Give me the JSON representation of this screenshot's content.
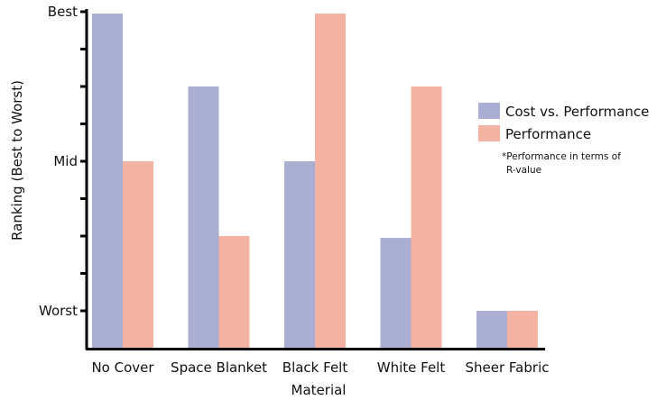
{
  "chart_data": {
    "type": "bar",
    "categories": [
      "No Cover",
      "Space Blanket",
      "Black Felt",
      "White Felt",
      "Sheer Fabric"
    ],
    "series": [
      {
        "name": "Cost vs. Performance",
        "values": [
          8.95,
          7.0,
          5.0,
          2.95,
          1.0
        ],
        "color": "#a9aed2"
      },
      {
        "name": "Performance",
        "values": [
          5.0,
          3.0,
          8.95,
          7.0,
          1.0
        ],
        "color": "#f4b3a2"
      }
    ],
    "xlabel": "Material",
    "ylabel": "Ranking (Best to Worst)",
    "ylim": [
      0,
      9
    ],
    "yticks": [
      {
        "value": 1,
        "label": "Worst"
      },
      {
        "value": 2,
        "label": ""
      },
      {
        "value": 3,
        "label": ""
      },
      {
        "value": 4,
        "label": ""
      },
      {
        "value": 5,
        "label": "Mid"
      },
      {
        "value": 6,
        "label": ""
      },
      {
        "value": 7,
        "label": ""
      },
      {
        "value": 8,
        "label": ""
      },
      {
        "value": 9,
        "label": "Best"
      }
    ],
    "note": [
      "*Performance in terms of",
      "R-value"
    ],
    "legend_position": "right",
    "grid": false
  }
}
